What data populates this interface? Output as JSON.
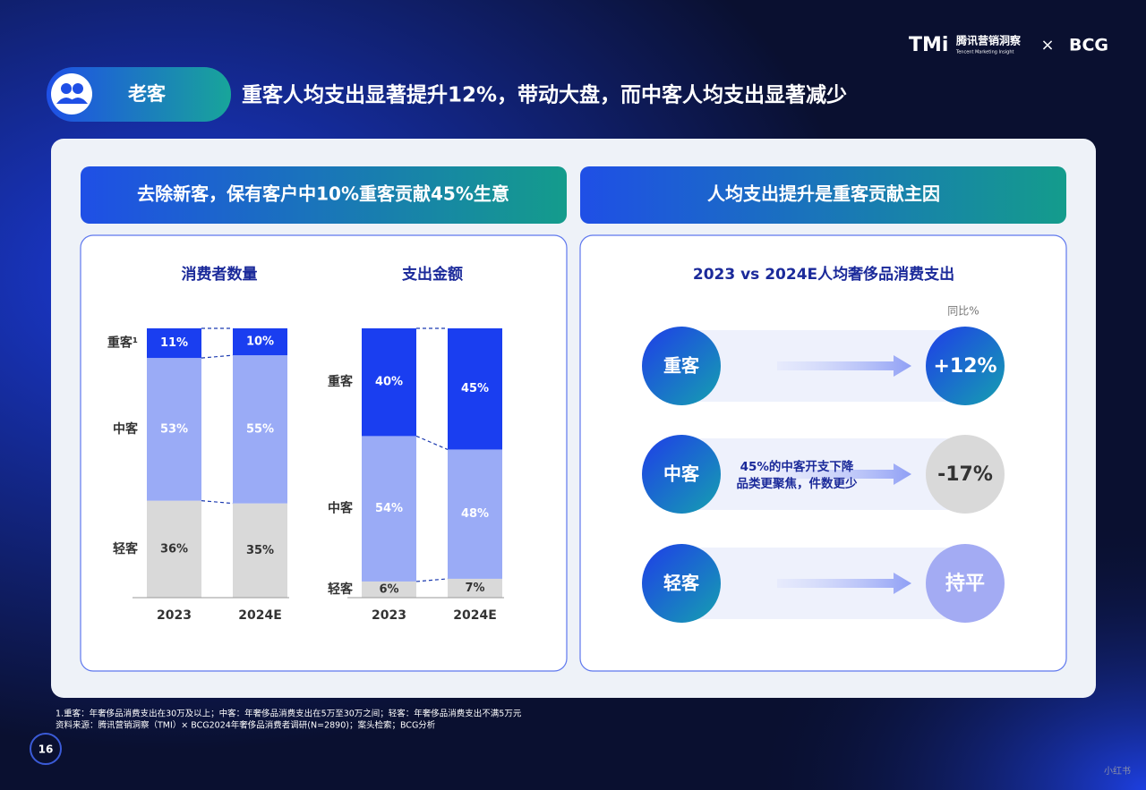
{
  "brand": {
    "name": "腾讯营销洞察",
    "sub": "Tencent Marketing Insight",
    "logo": "TMi",
    "partner": "BCG",
    "times": "×"
  },
  "header": {
    "tag": "老客",
    "title": "重客人均支出显著提升12%，带动大盘，而中客人均支出显著减少"
  },
  "left_heading": "去除新客，保有客户中10%重客贡献45%生意",
  "right_heading": "人均支出提升是重客贡献主因",
  "chart_data": [
    {
      "type": "stacked_bar",
      "title": "消费者数量",
      "categories": [
        "2023",
        "2024E"
      ],
      "ylim": [
        0,
        100
      ],
      "series": [
        {
          "name": "重客¹",
          "color": "#1a3ef0",
          "values": [
            11,
            10
          ],
          "value_labels": [
            "11%",
            "10%"
          ]
        },
        {
          "name": "中客",
          "color": "#9aabf6",
          "values": [
            53,
            55
          ],
          "value_labels": [
            "53%",
            "55%"
          ]
        },
        {
          "name": "轻客",
          "color": "#d9d9d9",
          "values": [
            36,
            35
          ],
          "value_labels": [
            "36%",
            "35%"
          ]
        }
      ]
    },
    {
      "type": "stacked_bar",
      "title": "支出金额",
      "categories": [
        "2023",
        "2024E"
      ],
      "ylim": [
        0,
        100
      ],
      "series": [
        {
          "name": "重客",
          "color": "#1a3ef0",
          "values": [
            40,
            45
          ],
          "value_labels": [
            "40%",
            "45%"
          ]
        },
        {
          "name": "中客",
          "color": "#9aabf6",
          "values": [
            54,
            48
          ],
          "value_labels": [
            "54%",
            "48%"
          ]
        },
        {
          "name": "轻客",
          "color": "#d9d9d9",
          "values": [
            6,
            7
          ],
          "value_labels": [
            "6%",
            "7%"
          ]
        }
      ]
    }
  ],
  "comparison": {
    "title": "2023 vs 2024E人均奢侈品消费支出",
    "yoy_label": "同比%",
    "rows": [
      {
        "label": "重客",
        "change": "+12%"
      },
      {
        "label": "中客",
        "note": [
          "45%的中客开支下降",
          "品类更聚焦，件数更少"
        ],
        "change": "-17%"
      },
      {
        "label": "轻客",
        "change": "持平"
      }
    ]
  },
  "footnotes": [
    "1.重客：年奢侈品消费支出在30万及以上；中客：年奢侈品消费支出在5万至30万之间；轻客：年奢侈品消费支出不满5万元",
    "资料来源：腾讯营销洞察（TMI）× BCG2024年奢侈品消费者调研(N=2890)；案头检索；BCG分析"
  ],
  "page_number": "16",
  "watermark": "小红书"
}
